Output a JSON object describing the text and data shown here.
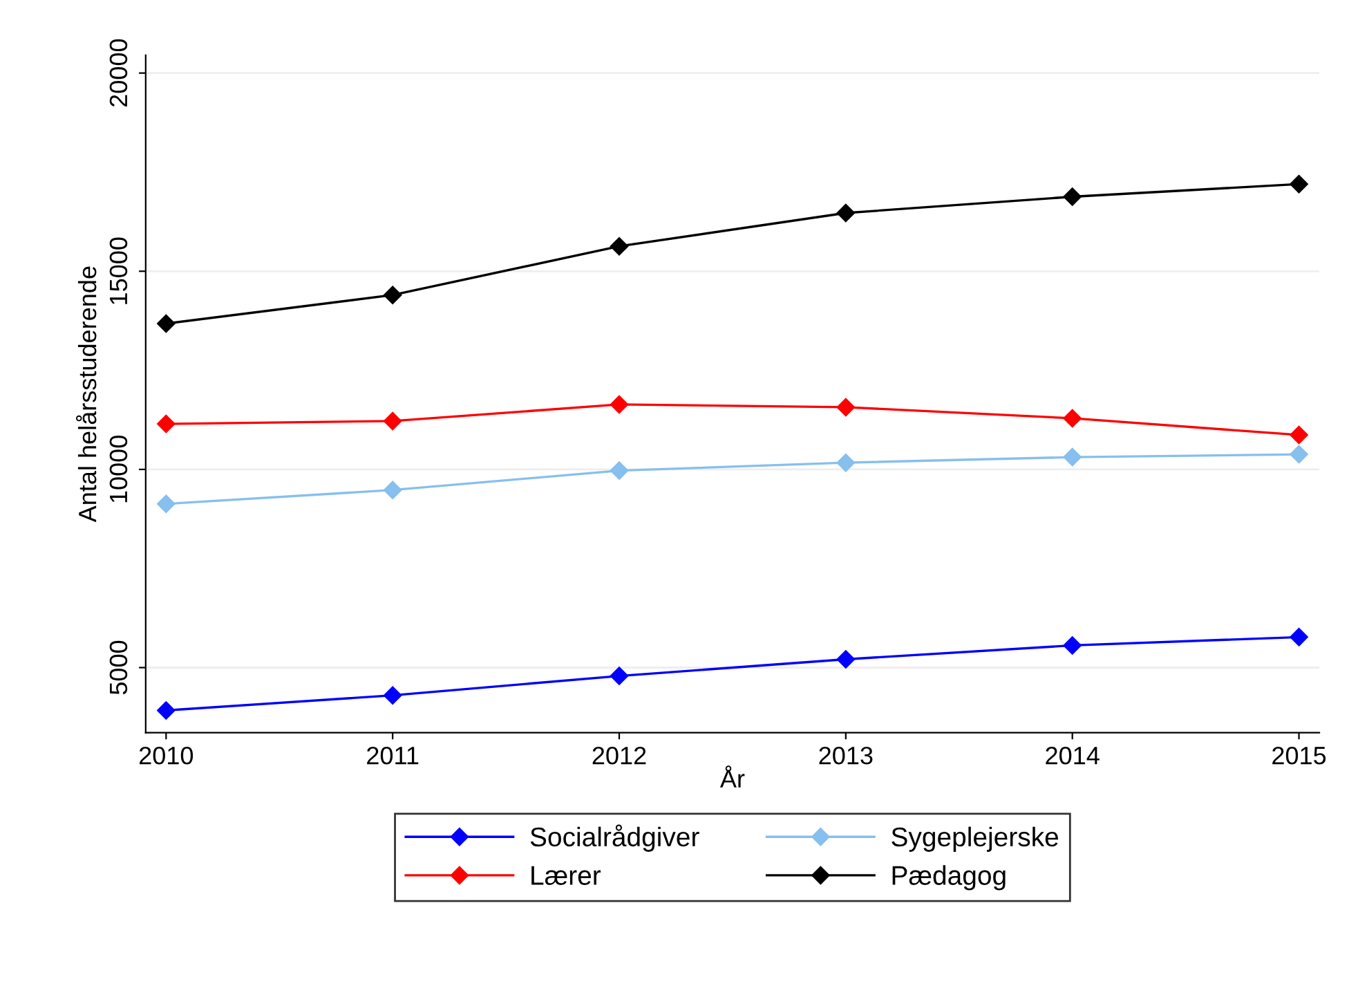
{
  "chart_data": {
    "type": "line",
    "xlabel": "År",
    "ylabel": "Antal helårsstuderende",
    "x": [
      2010,
      2011,
      2012,
      2013,
      2014,
      2015
    ],
    "series": [
      {
        "name": "Socialrådgiver",
        "color": "#0000ff",
        "values": [
          3920,
          4300,
          4790,
          5210,
          5560,
          5770
        ]
      },
      {
        "name": "Lærer",
        "color": "#ff0000",
        "values": [
          11150,
          11220,
          11640,
          11570,
          11290,
          10870
        ]
      },
      {
        "name": "Sygeplejerske",
        "color": "#87bfee",
        "values": [
          9130,
          9480,
          9970,
          10170,
          10310,
          10380
        ]
      },
      {
        "name": "Pædagog",
        "color": "#000000",
        "values": [
          13680,
          14400,
          15630,
          16470,
          16880,
          17200
        ]
      }
    ],
    "xlim": [
      2009.91,
      2015.09
    ],
    "xticks": [
      2010,
      2011,
      2012,
      2013,
      2014,
      2015
    ],
    "ylim": [
      3360,
      20450
    ],
    "yticks": [
      5000,
      10000,
      15000,
      20000
    ],
    "grid": "y",
    "legend": "bottom",
    "marker": "diamond",
    "line_style": "solid"
  }
}
